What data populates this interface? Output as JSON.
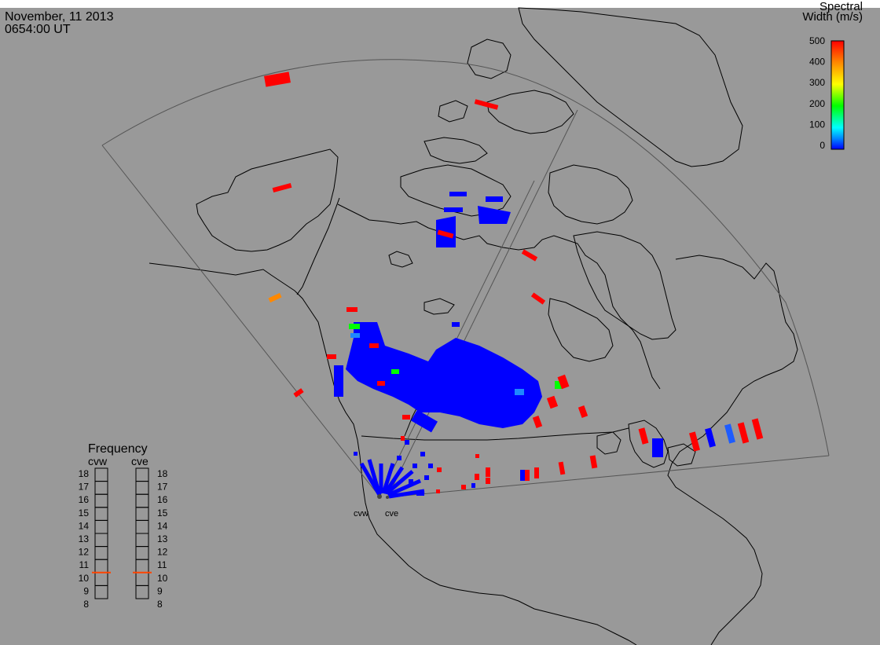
{
  "header": {
    "date": "November, 11 2013",
    "time": "0654:00 UT"
  },
  "colorbar": {
    "title_line1": "Spectral",
    "title_line2": "Width (m/s)",
    "ticks": [
      "500",
      "400",
      "300",
      "200",
      "100",
      "0"
    ],
    "stops": [
      "#ff0000",
      "#ff8800",
      "#ffff00",
      "#00ff00",
      "#00ffff",
      "#0088ff",
      "#0000ff"
    ]
  },
  "frequency_panel": {
    "title": "Frequency",
    "radar_left": "cvw",
    "radar_right": "cve",
    "scale": [
      "18",
      "17",
      "16",
      "15",
      "14",
      "13",
      "12",
      "11",
      "10",
      "9",
      "8"
    ],
    "cvw_frequency_mhz": 10.5,
    "cve_frequency_mhz": 10.5,
    "marker_color": "#ff4400"
  },
  "radar_labels": {
    "west": "cvw",
    "east": "cve"
  },
  "colors": {
    "background": "#999999",
    "coast": "#000000",
    "fov": "#555555",
    "low_width": "#0000ff",
    "high_width": "#ff0000"
  }
}
